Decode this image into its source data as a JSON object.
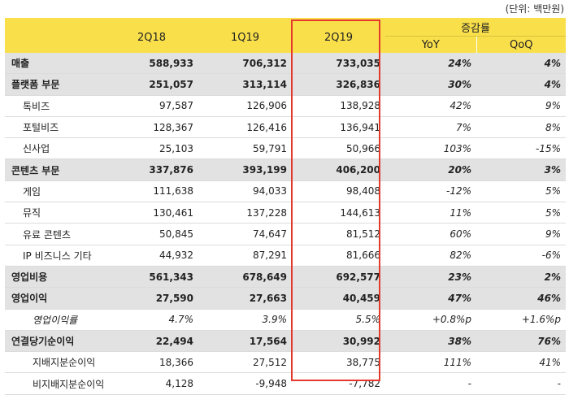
{
  "unit_note": "(단위: 백만원)",
  "headers": {
    "c1": "2Q18",
    "c2": "1Q19",
    "c3": "2Q19",
    "group": "증감률",
    "yoy": "YoY",
    "qoq": "QoQ"
  },
  "rows": [
    {
      "label": "매출",
      "v1": "588,933",
      "v2": "706,312",
      "v3": "733,035",
      "yoy": "24%",
      "qoq": "4%"
    },
    {
      "label": "플랫폼 부문",
      "v1": "251,057",
      "v2": "313,114",
      "v3": "326,836",
      "yoy": "30%",
      "qoq": "4%"
    },
    {
      "label": "톡비즈",
      "v1": "97,587",
      "v2": "126,906",
      "v3": "138,928",
      "yoy": "42%",
      "qoq": "9%"
    },
    {
      "label": "포털비즈",
      "v1": "128,367",
      "v2": "126,416",
      "v3": "136,941",
      "yoy": "7%",
      "qoq": "8%"
    },
    {
      "label": "신사업",
      "v1": "25,103",
      "v2": "59,791",
      "v3": "50,966",
      "yoy": "103%",
      "qoq": "-15%"
    },
    {
      "label": "콘텐츠 부문",
      "v1": "337,876",
      "v2": "393,199",
      "v3": "406,200",
      "yoy": "20%",
      "qoq": "3%"
    },
    {
      "label": "게임",
      "v1": "111,638",
      "v2": "94,033",
      "v3": "98,408",
      "yoy": "-12%",
      "qoq": "5%"
    },
    {
      "label": "뮤직",
      "v1": "130,461",
      "v2": "137,228",
      "v3": "144,613",
      "yoy": "11%",
      "qoq": "5%"
    },
    {
      "label": "유료 콘텐츠",
      "v1": "50,845",
      "v2": "74,647",
      "v3": "81,512",
      "yoy": "60%",
      "qoq": "9%"
    },
    {
      "label": "IP 비즈니스 기타",
      "v1": "44,932",
      "v2": "87,291",
      "v3": "81,666",
      "yoy": "82%",
      "qoq": "-6%"
    },
    {
      "label": "영업비용",
      "v1": "561,343",
      "v2": "678,649",
      "v3": "692,577",
      "yoy": "23%",
      "qoq": "2%"
    },
    {
      "label": "영업이익",
      "v1": "27,590",
      "v2": "27,663",
      "v3": "40,459",
      "yoy": "47%",
      "qoq": "46%"
    },
    {
      "label": "영업이익률",
      "v1": "4.7%",
      "v2": "3.9%",
      "v3": "5.5%",
      "yoy": "+0.8%p",
      "qoq": "+1.6%p"
    },
    {
      "label": "연결당기순이익",
      "v1": "22,494",
      "v2": "17,564",
      "v3": "30,992",
      "yoy": "38%",
      "qoq": "76%"
    },
    {
      "label": "지배지분순이익",
      "v1": "18,366",
      "v2": "27,512",
      "v3": "38,775",
      "yoy": "111%",
      "qoq": "41%"
    },
    {
      "label": "비지배지분순이익",
      "v1": "4,128",
      "v2": "-9,948",
      "v3": "-7,782",
      "yoy": "-",
      "qoq": "-"
    }
  ],
  "colors": {
    "header_bg": "#f9e04b",
    "major_row_bg": "#e2e2e2",
    "highlight_border": "#e43a2e"
  }
}
